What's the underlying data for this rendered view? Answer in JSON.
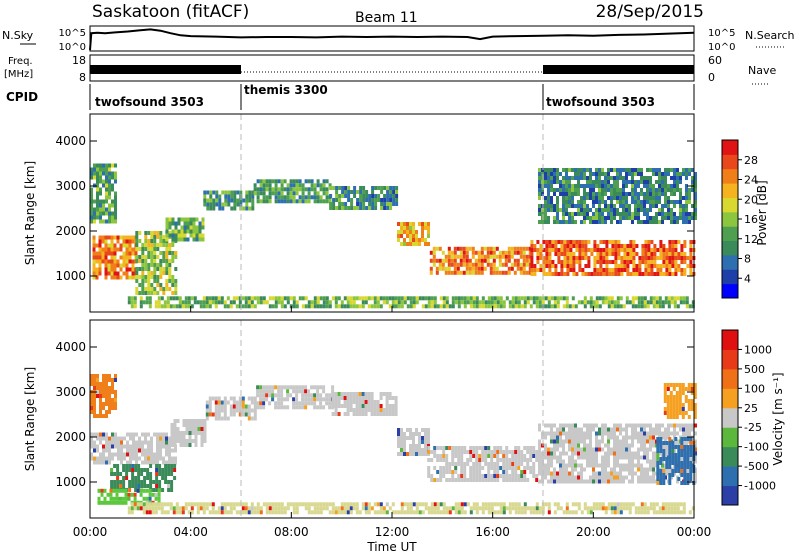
{
  "header": {
    "station": "Saskatoon (fitACF)",
    "beam": "Beam 11",
    "date": "28/Sep/2015"
  },
  "noise_panel": {
    "left_label": "N.Sky",
    "right_label": "N.Search",
    "tick_top": "10^5",
    "tick_bottom": "10^0",
    "sky_series": [
      [
        0.0,
        0.0
      ],
      [
        0.05,
        4.0
      ],
      [
        0.3,
        4.1
      ],
      [
        0.6,
        4.0
      ],
      [
        1.0,
        4.2
      ],
      [
        1.5,
        4.4
      ],
      [
        2.0,
        4.7
      ],
      [
        2.4,
        4.9
      ],
      [
        2.8,
        4.6
      ],
      [
        3.2,
        4.0
      ],
      [
        3.6,
        3.5
      ],
      [
        4.0,
        3.3
      ],
      [
        5.0,
        3.2
      ],
      [
        6.0,
        3.0
      ],
      [
        7.0,
        3.1
      ],
      [
        8.0,
        3.1
      ],
      [
        9.0,
        3.0
      ],
      [
        10.0,
        3.2
      ],
      [
        11.0,
        3.1
      ],
      [
        12.0,
        3.2
      ],
      [
        13.0,
        3.1
      ],
      [
        14.0,
        3.2
      ],
      [
        15.0,
        3.1
      ],
      [
        15.5,
        2.6
      ],
      [
        16.0,
        3.2
      ],
      [
        17.0,
        3.3
      ],
      [
        18.0,
        3.4
      ],
      [
        19.0,
        3.5
      ],
      [
        20.0,
        3.4
      ],
      [
        21.0,
        3.6
      ],
      [
        22.0,
        3.7
      ],
      [
        23.0,
        3.9
      ],
      [
        24.0,
        4.1
      ]
    ]
  },
  "freq_panel": {
    "left_label_top": "Freq.",
    "left_label_bottom": "[MHz]",
    "right_label": "Nave",
    "ticks_left": [
      "18",
      "8"
    ],
    "ticks_right": [
      "60",
      "0"
    ],
    "segments": [
      {
        "start": 0.0,
        "end": 6.0,
        "style": "solid"
      },
      {
        "start": 6.0,
        "end": 18.0,
        "style": "dotted"
      },
      {
        "start": 18.0,
        "end": 24.0,
        "style": "solid"
      }
    ]
  },
  "cpid": {
    "label": "CPID",
    "entries": [
      {
        "name": "twofsound 3503",
        "start": 0.0
      },
      {
        "name": "themis 3300",
        "start": 6.0
      },
      {
        "name": "twofsound 3503",
        "start": 18.0
      }
    ]
  },
  "chart_data": [
    {
      "type": "heatmap",
      "panel": "power",
      "ylabel": "Slant Range [km]",
      "xlabel": "Time UT",
      "xlim": [
        0,
        24
      ],
      "ylim": [
        200,
        4600
      ],
      "yticks": [
        "1000",
        "2000",
        "3000",
        "4000"
      ],
      "xticks": [
        "00:00",
        "04:00",
        "08:00",
        "12:00",
        "16:00",
        "20:00",
        "00:00"
      ],
      "colorbar": {
        "label": "Power [dB]",
        "ticks": [
          "4",
          "8",
          "12",
          "16",
          "20",
          "24",
          "28"
        ],
        "colors": [
          "#0000ff",
          "#1f3fa8",
          "#2e6fb0",
          "#3a8a5a",
          "#4ea050",
          "#8cc63f",
          "#d8d830",
          "#f5b320",
          "#f07f1a",
          "#e8481b",
          "#e01414"
        ]
      },
      "regions": [
        {
          "t0": 0.1,
          "t1": 1.8,
          "r0": 1000,
          "r1": 1900,
          "level": 0.78
        },
        {
          "t0": 0.0,
          "t1": 1.0,
          "r0": 2200,
          "r1": 3500,
          "level": 0.4
        },
        {
          "t0": 1.8,
          "t1": 3.4,
          "r0": 600,
          "r1": 2000,
          "level": 0.5
        },
        {
          "t0": 3.0,
          "t1": 4.5,
          "r0": 1800,
          "r1": 2300,
          "level": 0.42
        },
        {
          "t0": 4.5,
          "t1": 6.5,
          "r0": 2500,
          "r1": 2900,
          "level": 0.38
        },
        {
          "t0": 6.5,
          "t1": 9.5,
          "r0": 2700,
          "r1": 3150,
          "level": 0.36
        },
        {
          "t0": 9.5,
          "t1": 12.2,
          "r0": 2500,
          "r1": 3000,
          "level": 0.34
        },
        {
          "t0": 12.2,
          "t1": 13.5,
          "r0": 1700,
          "r1": 2200,
          "level": 0.7
        },
        {
          "t0": 13.5,
          "t1": 17.5,
          "r0": 1050,
          "r1": 1650,
          "level": 0.76
        },
        {
          "t0": 17.5,
          "t1": 24.0,
          "r0": 1000,
          "r1": 1800,
          "level": 0.82
        },
        {
          "t0": 17.8,
          "t1": 24.0,
          "r0": 2200,
          "r1": 3400,
          "level": 0.3
        },
        {
          "t0": 1.5,
          "t1": 24.0,
          "r0": 300,
          "r1": 550,
          "level": 0.45
        }
      ]
    },
    {
      "type": "heatmap",
      "panel": "velocity",
      "ylabel": "Slant Range [km]",
      "xlabel": "Time UT",
      "xlim": [
        0,
        24
      ],
      "ylim": [
        200,
        4600
      ],
      "yticks": [
        "1000",
        "2000",
        "3000",
        "4000"
      ],
      "xticks": [
        "00:00",
        "04:00",
        "08:00",
        "12:00",
        "16:00",
        "20:00",
        "00:00"
      ],
      "colorbar": {
        "label": "Velocity [m s⁻¹]",
        "ticks": [
          "1000",
          "500",
          "100",
          "25",
          "-25",
          "-100",
          "-500",
          "-1000"
        ],
        "colors": [
          "#2b3fa6",
          "#2e6fb0",
          "#3a8a5a",
          "#5cb83c",
          "#c8c8c8",
          "#f5a020",
          "#f07018",
          "#e83a18",
          "#e01010"
        ]
      },
      "regions": [
        {
          "t0": 0.0,
          "t1": 1.0,
          "r0": 2500,
          "r1": 3400,
          "color": "#f07f1a"
        },
        {
          "t0": 0.0,
          "t1": 3.4,
          "r0": 1400,
          "r1": 2100,
          "color": "#c8c8c8"
        },
        {
          "t0": 0.8,
          "t1": 3.4,
          "r0": 800,
          "r1": 1400,
          "color": "#3a8a5a"
        },
        {
          "t0": 0.3,
          "t1": 2.8,
          "r0": 550,
          "r1": 850,
          "color": "#5cc83c"
        },
        {
          "t0": 3.2,
          "t1": 4.6,
          "r0": 1800,
          "r1": 2400,
          "color": "#c8c8c8"
        },
        {
          "t0": 4.6,
          "t1": 6.6,
          "r0": 2400,
          "r1": 2900,
          "color": "#c8c8c8"
        },
        {
          "t0": 6.6,
          "t1": 9.6,
          "r0": 2700,
          "r1": 3150,
          "color": "#c8c8c8"
        },
        {
          "t0": 9.6,
          "t1": 12.2,
          "r0": 2500,
          "r1": 3000,
          "color": "#c8c8c8"
        },
        {
          "t0": 12.2,
          "t1": 13.4,
          "r0": 1600,
          "r1": 2200,
          "color": "#c8c8c8"
        },
        {
          "t0": 13.4,
          "t1": 17.8,
          "r0": 1050,
          "r1": 1800,
          "color": "#c8c8c8"
        },
        {
          "t0": 17.8,
          "t1": 24.0,
          "r0": 1000,
          "r1": 2300,
          "color": "#c8c8c8"
        },
        {
          "t0": 22.5,
          "t1": 24.0,
          "r0": 1000,
          "r1": 2000,
          "color": "#2e6fb0"
        },
        {
          "t0": 22.8,
          "t1": 24.0,
          "r0": 2400,
          "r1": 3200,
          "color": "#f5a020"
        },
        {
          "t0": 1.5,
          "t1": 24.0,
          "r0": 300,
          "r1": 550,
          "color": "#d8d890"
        }
      ]
    }
  ]
}
